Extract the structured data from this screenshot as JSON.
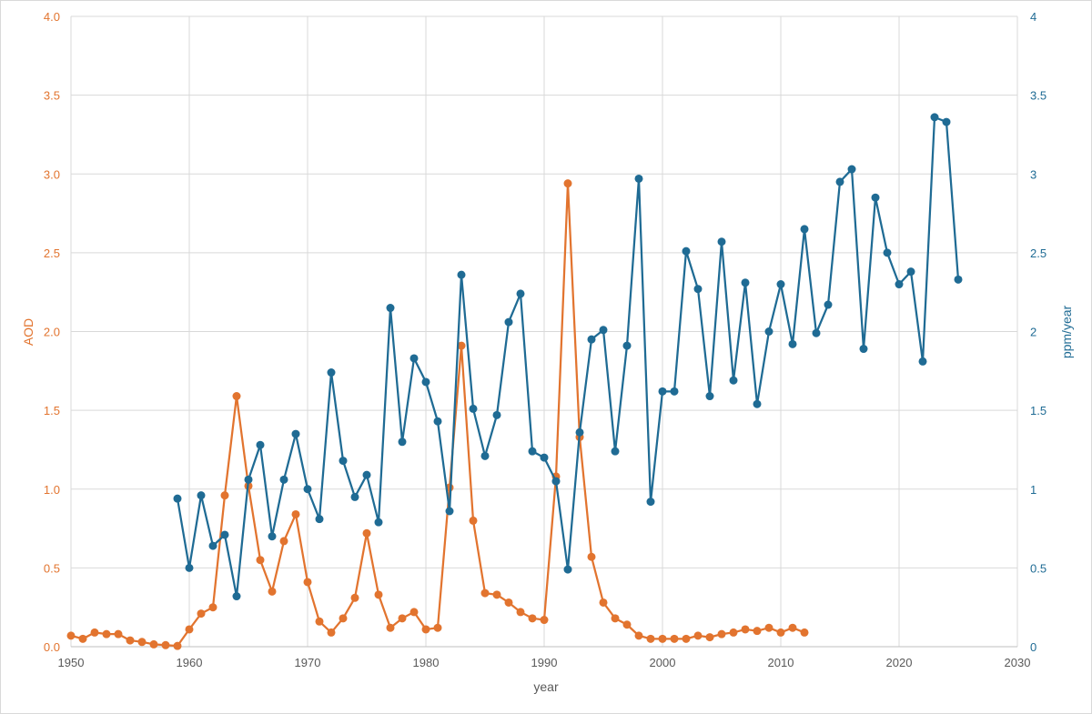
{
  "chart_data": {
    "type": "line",
    "title": "",
    "xlabel": "year",
    "ylabel_left": "AOD",
    "ylabel_right": "ppm/year",
    "xlim": [
      1950,
      2030
    ],
    "ylim_left": [
      0,
      4
    ],
    "ylim_right": [
      0,
      4
    ],
    "x_ticks": [
      "1950",
      "1960",
      "1970",
      "1980",
      "1990",
      "2000",
      "2010",
      "2020",
      "2030"
    ],
    "y_left_ticks": [
      "0.0",
      "0.5",
      "1.0",
      "1.5",
      "2.0",
      "2.5",
      "3.0",
      "3.5",
      "4.0"
    ],
    "y_right_ticks": [
      "0",
      "0.5",
      "1",
      "1.5",
      "2",
      "2.5",
      "3",
      "3.5",
      "4"
    ],
    "grid": true,
    "legend": "none",
    "series": [
      {
        "axis": "left",
        "color": "#e2742f",
        "x": [
          1950,
          1951,
          1952,
          1953,
          1954,
          1955,
          1956,
          1957,
          1958,
          1959,
          1960,
          1961,
          1962,
          1963,
          1964,
          1965,
          1966,
          1967,
          1968,
          1969,
          1970,
          1971,
          1972,
          1973,
          1974,
          1975,
          1976,
          1977,
          1978,
          1979,
          1980,
          1981,
          1982,
          1983,
          1984,
          1985,
          1986,
          1987,
          1988,
          1989,
          1990,
          1991,
          1992,
          1993,
          1994,
          1995,
          1996,
          1997,
          1998,
          1999,
          2000,
          2001,
          2002,
          2003,
          2004,
          2005,
          2006,
          2007,
          2008,
          2009,
          2010,
          2011,
          2012
        ],
        "y": [
          0.07,
          0.05,
          0.09,
          0.08,
          0.08,
          0.04,
          0.03,
          0.015,
          0.01,
          0.005,
          0.11,
          0.21,
          0.25,
          0.96,
          1.59,
          1.02,
          0.55,
          0.35,
          0.67,
          0.84,
          0.41,
          0.16,
          0.09,
          0.18,
          0.31,
          0.72,
          0.33,
          0.12,
          0.18,
          0.22,
          0.11,
          0.12,
          1.01,
          1.91,
          0.8,
          0.34,
          0.33,
          0.28,
          0.22,
          0.18,
          0.17,
          1.08,
          2.94,
          1.33,
          0.57,
          0.28,
          0.18,
          0.14,
          0.07,
          0.05,
          0.05,
          0.05,
          0.05,
          0.07,
          0.06,
          0.08,
          0.09,
          0.11,
          0.1,
          0.12,
          0.09,
          0.12,
          0.09
        ]
      },
      {
        "axis": "right",
        "color": "#1f6b94",
        "x": [
          1959,
          1960,
          1961,
          1962,
          1963,
          1964,
          1965,
          1966,
          1967,
          1968,
          1969,
          1970,
          1971,
          1972,
          1973,
          1974,
          1975,
          1976,
          1977,
          1978,
          1979,
          1980,
          1981,
          1982,
          1983,
          1984,
          1985,
          1986,
          1987,
          1988,
          1989,
          1990,
          1991,
          1992,
          1993,
          1994,
          1995,
          1996,
          1997,
          1998,
          1999,
          2000,
          2001,
          2002,
          2003,
          2004,
          2005,
          2006,
          2007,
          2008,
          2009,
          2010,
          2011,
          2012,
          2013,
          2014,
          2015,
          2016,
          2017,
          2018,
          2019,
          2020,
          2021,
          2022,
          2023,
          2024,
          2025
        ],
        "y": [
          0.94,
          0.5,
          0.96,
          0.64,
          0.71,
          0.32,
          1.06,
          1.28,
          0.7,
          1.06,
          1.35,
          1.0,
          0.81,
          1.74,
          1.18,
          0.95,
          1.09,
          0.79,
          2.15,
          1.3,
          1.83,
          1.68,
          1.43,
          0.86,
          2.36,
          1.51,
          1.21,
          1.47,
          2.06,
          2.24,
          1.24,
          1.2,
          1.05,
          0.49,
          1.36,
          1.95,
          2.01,
          1.24,
          1.91,
          2.97,
          0.92,
          1.62,
          1.62,
          2.51,
          2.27,
          1.59,
          2.57,
          1.69,
          2.31,
          1.54,
          2.0,
          2.3,
          1.92,
          2.65,
          1.99,
          2.17,
          2.95,
          3.03,
          1.89,
          2.85,
          2.5,
          2.3,
          2.38,
          1.81,
          3.36,
          3.33,
          2.33
        ]
      }
    ]
  }
}
